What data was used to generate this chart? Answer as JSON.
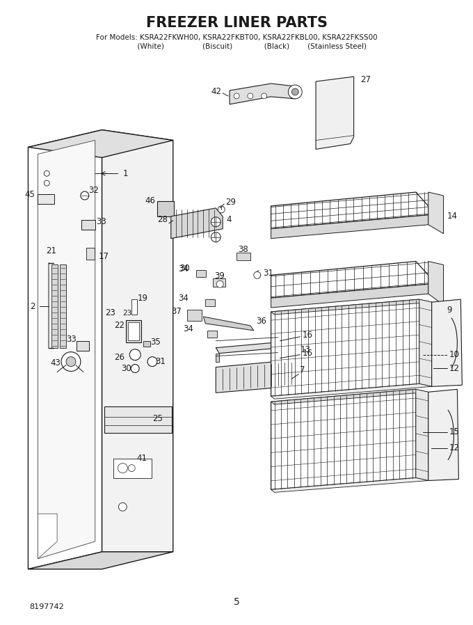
{
  "title": "FREEZER LINER PARTS",
  "subtitle_line1": "For Models: KSRA22FKWH00, KSRA22FKBT00, KSRA22FKBL00, KSRA22FKSS00",
  "subtitle_line2_a": "              (White)                   (Biscuit)              (Black)        (Stainless Steel)",
  "page_number": "5",
  "part_number": "8197742",
  "background_color": "#ffffff",
  "line_color": "#1a1a1a",
  "title_fontsize": 15,
  "subtitle_fontsize": 7.5,
  "label_fontsize": 8.5,
  "figsize": [
    6.8,
    8.98
  ],
  "dpi": 100
}
